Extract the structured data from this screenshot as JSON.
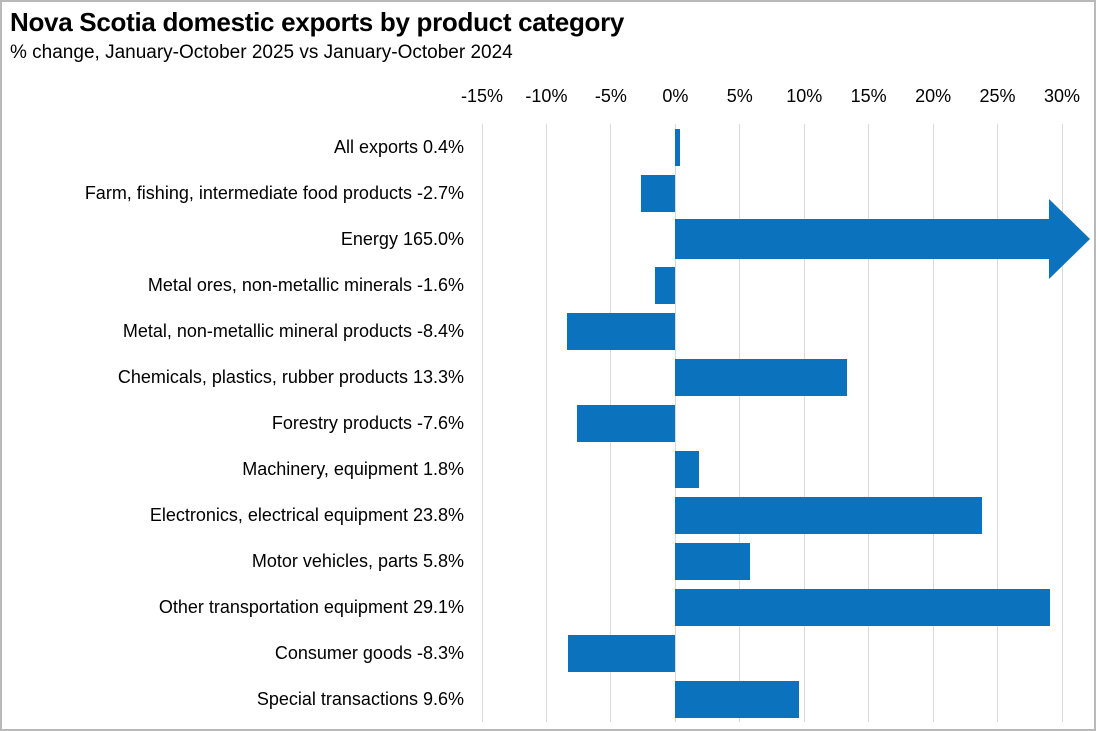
{
  "header": {
    "title": "Nova Scotia domestic exports by product category",
    "subtitle": "% change, January-October 2025 vs January-October 2024"
  },
  "colors": {
    "bar": "#0b72be",
    "gridline": "#d9d9d9",
    "text": "#000000",
    "frame_border": "#b9b9b9",
    "background": "#ffffff"
  },
  "chart_data": {
    "type": "bar",
    "orientation": "horizontal",
    "title": "Nova Scotia domestic exports by product category",
    "subtitle": "% change, January-October 2025 vs January-October 2024",
    "xlabel": "",
    "ylabel": "",
    "xlim": [
      -15,
      30
    ],
    "tick_values": [
      -15,
      -10,
      -5,
      0,
      5,
      10,
      15,
      20,
      25,
      30
    ],
    "x_tick_labels": [
      "-15%",
      "-10%",
      "-5%",
      "0%",
      "5%",
      "10%",
      "15%",
      "20%",
      "25%",
      "30%"
    ],
    "grid": "vertical-only",
    "legend": "none",
    "categories": [
      {
        "name": "All exports",
        "value": 0.4,
        "label": "All exports 0.4%"
      },
      {
        "name": "Farm, fishing, intermediate food products",
        "value": -2.7,
        "label": "Farm, fishing, intermediate food products -2.7%"
      },
      {
        "name": "Energy",
        "value": 165.0,
        "label": "Energy 165.0%",
        "clipped_arrow": true
      },
      {
        "name": "Metal ores, non-metallic minerals",
        "value": -1.6,
        "label": "Metal ores, non-metallic minerals -1.6%"
      },
      {
        "name": "Metal, non-metallic mineral products",
        "value": -8.4,
        "label": "Metal, non-metallic mineral products -8.4%"
      },
      {
        "name": "Chemicals, plastics, rubber products",
        "value": 13.3,
        "label": "Chemicals, plastics, rubber products 13.3%"
      },
      {
        "name": "Forestry products",
        "value": -7.6,
        "label": "Forestry products -7.6%"
      },
      {
        "name": "Machinery, equipment",
        "value": 1.8,
        "label": "Machinery, equipment 1.8%"
      },
      {
        "name": "Electronics, electrical equipment",
        "value": 23.8,
        "label": "Electronics, electrical equipment 23.8%"
      },
      {
        "name": "Motor vehicles, parts",
        "value": 5.8,
        "label": "Motor vehicles, parts 5.8%"
      },
      {
        "name": "Other transportation equipment",
        "value": 29.1,
        "label": "Other transportation equipment 29.1%"
      },
      {
        "name": "Consumer goods",
        "value": -8.3,
        "label": "Consumer goods -8.3%"
      },
      {
        "name": "Special transactions",
        "value": 9.6,
        "label": "Special transactions 9.6%"
      }
    ]
  }
}
